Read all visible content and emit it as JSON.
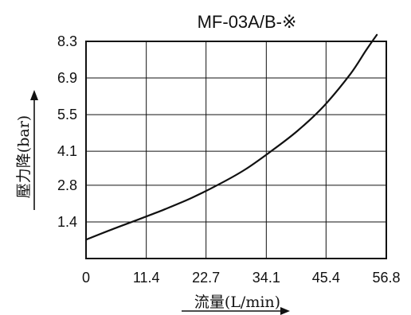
{
  "chart_data": {
    "type": "line",
    "title": "MF-03A/B-※",
    "xlabel": "流量(L/min)",
    "ylabel": "壓力降(bar)",
    "x_ticks": [
      0,
      11.4,
      22.7,
      34.1,
      45.4,
      56.8
    ],
    "x_tick_labels": [
      "0",
      "11.4",
      "22.7",
      "34.1",
      "45.4",
      "56.8"
    ],
    "y_ticks": [
      1.4,
      2.8,
      4.1,
      5.5,
      6.9,
      8.3
    ],
    "y_tick_labels": [
      "1.4",
      "2.8",
      "4.1",
      "5.5",
      "6.9",
      "8.3"
    ],
    "xlim": [
      0,
      56.8
    ],
    "ylim": [
      0,
      8.3
    ],
    "grid": true,
    "series": [
      {
        "x": [
          0,
          5,
          10,
          15,
          20,
          25,
          30,
          35,
          40,
          45,
          50,
          53,
          55
        ],
        "y": [
          0.72,
          1.12,
          1.5,
          1.89,
          2.32,
          2.82,
          3.39,
          4.1,
          4.88,
          5.83,
          7.05,
          7.97,
          8.55
        ]
      }
    ]
  }
}
